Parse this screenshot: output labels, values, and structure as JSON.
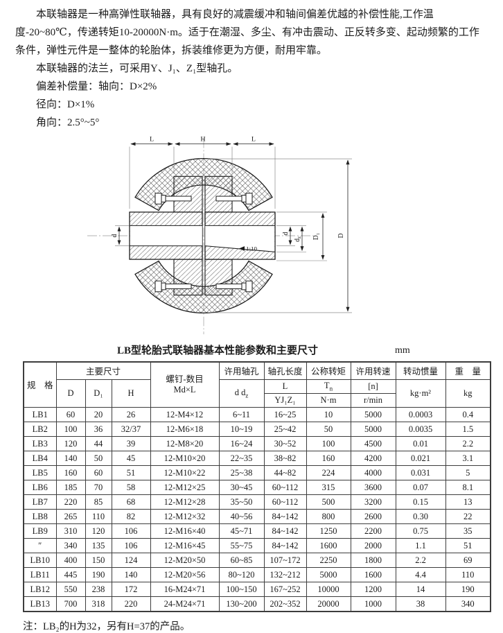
{
  "intro": {
    "p1": "本联轴器是一种高弹性联轴器，具有良好的减震缓冲和轴间偏差优越的补偿性能,工作温度-20~80℃，传递转矩10-20000N·m。适于在潮湿、多尘、有冲击震动、正反转多变、起动频繁的工作条件，弹性元件是一整体的轮胎体，拆装维修更为方便，耐用牢靠。",
    "p2": "本联轴器的法兰，可采用Y、J₁、Z₁型轴孔。",
    "comp_line1": "偏差补偿量：轴向：D×2%",
    "comp_line2": "径向：D×1%",
    "comp_line3": "角向：2.5°~5°"
  },
  "drawing": {
    "dim_L_left": "L",
    "dim_H": "H",
    "dim_L_right": "L",
    "dim_d_left": "d",
    "dim_d_right": "d",
    "dim_dz_main": "d",
    "dim_dz_sub": "z",
    "dim_D1": "D₁",
    "dim_D": "D",
    "taper": "1:10"
  },
  "table": {
    "title": "LB型轮胎式联轴器基本性能参数和主要尺寸",
    "unit": "mm",
    "header": {
      "spec": "规　格",
      "main_dims": "主要尺寸",
      "d_col": "D",
      "d1_col": "D₁",
      "h_col": "H",
      "screw_line1": "螺钉-数目",
      "screw_line2": "Md×L",
      "bore": "许用轴孔",
      "bore_sub_main": "d d",
      "bore_sub_sub": "z",
      "bore_len": "轴孔长度",
      "bore_len_l": "L",
      "bore_len_yjz": "YJ₁Z₁",
      "torque": "公称转矩",
      "torque_sym_main": "T",
      "torque_sym_sub": "n",
      "torque_unit": "N·m",
      "speed": "许用转速",
      "speed_sym": "[n]",
      "speed_unit": "r/min",
      "inertia": "转动惯量",
      "inertia_unit": "kg·m²",
      "weight": "重　量",
      "weight_unit": "kg"
    },
    "rows": [
      [
        "LB1",
        "60",
        "20",
        "26",
        "12-M4×12",
        "6~11",
        "16~25",
        "10",
        "5000",
        "0.0003",
        "0.4"
      ],
      [
        "LB2",
        "100",
        "36",
        "32/37",
        "12-M6×18",
        "10~19",
        "25~42",
        "50",
        "5000",
        "0.0035",
        "1.5"
      ],
      [
        "LB3",
        "120",
        "44",
        "39",
        "12-M8×20",
        "16~24",
        "30~52",
        "100",
        "4500",
        "0.01",
        "2.2"
      ],
      [
        "LB4",
        "140",
        "50",
        "45",
        "12-M10×20",
        "22~35",
        "38~82",
        "160",
        "4200",
        "0.021",
        "3.1"
      ],
      [
        "LB5",
        "160",
        "60",
        "51",
        "12-M10×22",
        "25~38",
        "44~82",
        "224",
        "4000",
        "0.031",
        "5"
      ],
      [
        "LB6",
        "185",
        "70",
        "58",
        "12-M12×25",
        "30~45",
        "60~112",
        "315",
        "3600",
        "0.07",
        "8.1"
      ],
      [
        "LB7",
        "220",
        "85",
        "68",
        "12-M12×28",
        "35~50",
        "60~112",
        "500",
        "3200",
        "0.15",
        "13"
      ],
      [
        "LB8",
        "265",
        "110",
        "82",
        "12-M12×32",
        "40~56",
        "84~142",
        "800",
        "2600",
        "0.30",
        "22"
      ],
      [
        "LB9",
        "310",
        "120",
        "106",
        "12-M16×40",
        "45~71",
        "84~142",
        "1250",
        "2200",
        "0.75",
        "35"
      ],
      [
        "″",
        "340",
        "135",
        "106",
        "12-M16×45",
        "55~75",
        "84~142",
        "1600",
        "2000",
        "1.1",
        "51"
      ],
      [
        "LB10",
        "400",
        "150",
        "124",
        "12-M20×50",
        "60~85",
        "107~172",
        "2250",
        "1800",
        "2.2",
        "69"
      ],
      [
        "LB11",
        "445",
        "190",
        "140",
        "12-M20×56",
        "80~120",
        "132~212",
        "5000",
        "1600",
        "4.4",
        "110"
      ],
      [
        "LB12",
        "550",
        "238",
        "172",
        "16-M24×71",
        "100~150",
        "167~252",
        "10000",
        "1200",
        "14",
        "190"
      ],
      [
        "LB13",
        "700",
        "318",
        "220",
        "24-M24×71",
        "130~200",
        "202~352",
        "20000",
        "1000",
        "38",
        "340"
      ]
    ]
  },
  "footnote": "注：LB₂的H为32，另有H=37的产品。"
}
